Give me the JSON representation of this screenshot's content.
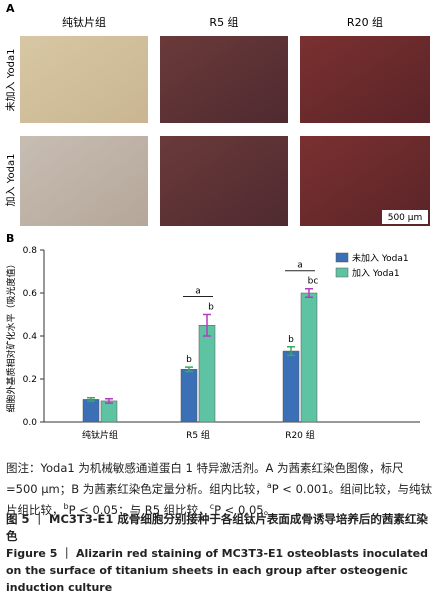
{
  "panel_a": {
    "label": "A",
    "columns": [
      "纯钛片组",
      "R5 组",
      "R20 组"
    ],
    "rows": [
      "未加入 Yoda1",
      "加入 Yoda1"
    ],
    "scale_bar": "500 μm"
  },
  "chart_data": {
    "type": "bar",
    "panel_label": "B",
    "y_label": "细胞外基质相对矿化水平（吸光度值）",
    "categories": [
      "纯钛片组",
      "R5 组",
      "R20 组"
    ],
    "series": [
      {
        "name": "未加入 Yoda1",
        "color": "#3b6fb6",
        "error_color": "#3aa860",
        "values": [
          0.105,
          0.245,
          0.33
        ],
        "errors": [
          0.008,
          0.01,
          0.02
        ],
        "annotations": [
          null,
          "b",
          "b"
        ]
      },
      {
        "name": "加入 Yoda1",
        "color": "#5ec3a3",
        "error_color": "#b23cc0",
        "values": [
          0.098,
          0.45,
          0.6
        ],
        "errors": [
          0.01,
          0.05,
          0.02
        ],
        "annotations": [
          null,
          "b",
          "bc"
        ]
      }
    ],
    "bracket_labels": [
      null,
      "a",
      "a"
    ],
    "ylim": [
      0,
      0.8
    ],
    "yticks": [
      {
        "value": 0,
        "label": "0.0"
      },
      0.2,
      0.4,
      0.6,
      0.8
    ],
    "legend": "upper right"
  },
  "caption": {
    "note": [
      {
        "text": "图注：Yoda1 为机械敏感通道蛋白 1 特异激活剂。A 为茜素红染色图像，标尺 =500 μm；B 为茜素红染色定量分析。组内比较，"
      },
      {
        "sup": "a"
      },
      {
        "text": "P < 0.001。组间比较，与纯钛片组比较，"
      },
      {
        "sup": "b"
      },
      {
        "text": "P < 0.05；与 R5 组比较，"
      },
      {
        "sup": "c"
      },
      {
        "text": "P < 0.05。"
      }
    ],
    "title_cn": "图 5 ｜ MC3T3-E1 成骨细胞分别接种于各组钛片表面成骨诱导培养后的茜素红染色",
    "title_en": "Figure 5 ｜ Alizarin red staining of MC3T3-E1 osteoblasts inoculated on the surface of titanium sheets in each group after osteogenic induction culture"
  }
}
